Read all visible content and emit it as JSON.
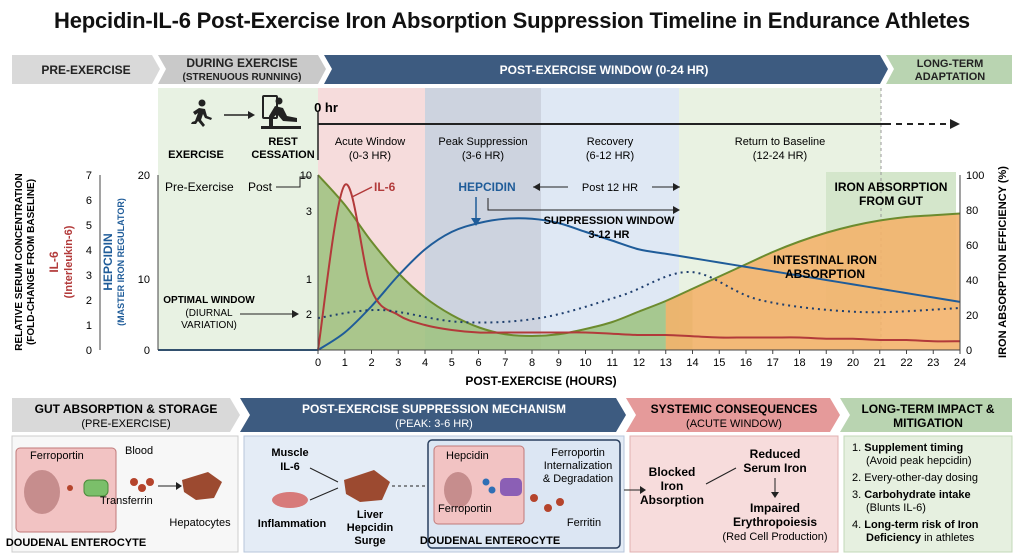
{
  "title": "Hepcidin-IL-6 Post-Exercise Iron Absorption Suppression Timeline in Endurance Athletes",
  "phases": {
    "pre": "PRE-EXERCISE",
    "during": "DURING EXERCISE",
    "during_sub": "(STRENUOUS RUNNING)",
    "post": "POST-EXERCISE WINDOW (0-24 HR)",
    "long": "LONG-TERM",
    "long2": "ADAPTATION"
  },
  "icons": {
    "exercise": "EXERCISE",
    "rest1": "REST",
    "rest2": "CESSATION",
    "zero": "0 hr"
  },
  "windows": [
    {
      "name": "Acute Window",
      "range": "(0-3 HR)"
    },
    {
      "name": "Peak Suppression",
      "range": "(3-6 HR)"
    },
    {
      "name": "Recovery",
      "range": "(6-12 HR)"
    },
    {
      "name": "Return to Baseline",
      "range": "(12-24 HR)"
    }
  ],
  "axes": {
    "y_rel": "RELATIVE SERUM CONCENTRATION",
    "y_rel2": "(FOLD-CHANGE FROM BASELINE)",
    "il6": "IL-6",
    "il6_2": "(Interleukin-6)",
    "hep": "HEPCIDIN",
    "hep2": "(MASTER IRON REGULATOR)",
    "right": "IRON ABSORPTION EFFICIENCY (%)",
    "x": "POST-EXERCISE (HOURS)",
    "il6_ticks": [
      "7",
      "6",
      "5",
      "4",
      "3",
      "2",
      "1",
      "0"
    ],
    "hep_ticks": [
      "20",
      "10",
      "0"
    ],
    "inner_ticks": [
      "10",
      "3",
      "1",
      "2"
    ],
    "right_ticks": [
      "100",
      "80",
      "60",
      "40",
      "20",
      "0"
    ],
    "x_ticks": [
      "0",
      "1",
      "2",
      "3",
      "4",
      "5",
      "6",
      "7",
      "8",
      "9",
      "10",
      "11",
      "12",
      "13",
      "14",
      "15",
      "16",
      "17",
      "18",
      "19",
      "20",
      "21",
      "22",
      "23",
      "24"
    ]
  },
  "labels": {
    "pre_exercise": "Pre-Exercise",
    "post": "Post",
    "il6": "IL-6",
    "hepcidin": "HEPCIDIN",
    "post12": "Post 12 HR",
    "supp1": "SUPPRESSION WINDOW",
    "supp2": "3-12 HR",
    "optimal1": "OPTIMAL WINDOW",
    "optimal2": "(DIURNAL",
    "optimal3": "VARIATION)",
    "iron_gut1": "IRON ABSORPTION",
    "iron_gut2": "FROM GUT",
    "intestinal1": "INTESTINAL IRON",
    "intestinal2": "ABSORPTION"
  },
  "chart_data": {
    "type": "line",
    "x": [
      0,
      1,
      2,
      3,
      4,
      5,
      6,
      7,
      8,
      9,
      10,
      11,
      12,
      13,
      14,
      15,
      16,
      17,
      18,
      19,
      20,
      21,
      22,
      23,
      24
    ],
    "xlabel": "POST-EXERCISE (HOURS)",
    "series": [
      {
        "name": "IL-6",
        "color": "#b23a3a",
        "values": [
          0,
          6.6,
          2.4,
          1.4,
          1.0,
          0.8,
          0.7,
          0.7,
          0.7,
          0.7,
          0.7,
          0.65,
          0.6,
          0.6,
          0.55,
          0.5,
          0.5,
          0.5,
          0.5,
          0.45,
          0.45,
          0.4,
          0.4,
          0.35,
          0.35
        ]
      },
      {
        "name": "HEPCIDIN",
        "color": "#1f5c99",
        "values": [
          0,
          2,
          5,
          8.5,
          11.5,
          13.5,
          14.5,
          15,
          15,
          14.5,
          13.5,
          12.5,
          11.5,
          11,
          10.5,
          10,
          9.5,
          9,
          8.5,
          8,
          7.5,
          7,
          6.5,
          6,
          5.5
        ]
      }
    ],
    "iron_absorption_percent": [
      100,
      83,
      62,
      44,
      30,
      20,
      13,
      9,
      8,
      9,
      12,
      16,
      22,
      28,
      35,
      42,
      49,
      56,
      62,
      67,
      71,
      74,
      76,
      77,
      78
    ],
    "ylim_hep": [
      0,
      20
    ],
    "ylim_il6": [
      0,
      7
    ],
    "ylim_right": [
      0,
      100
    ]
  },
  "bottom": {
    "gut_title": "GUT ABSORPTION & STORAGE",
    "gut_sub": "(PRE-EXERCISE)",
    "mech_title": "POST-EXERCISE SUPPRESSION MECHANISM",
    "mech_sub": "(PEAK: 3-6 HR)",
    "sys_title": "SYSTEMIC CONSEQUENCES",
    "sys_sub": "(ACUTE WINDOW)",
    "long_title": "LONG-TERM IMPACT &",
    "long_title2": "MITIGATION",
    "ferroportin": "Ferroportin",
    "blood": "Blood",
    "transferrin": "Transferrin",
    "hepatocytes": "Hepatocytes",
    "enterocyte": "DOUDENAL ENTEROCYTE",
    "muscle1": "Muscle",
    "muscle2": "IL-6",
    "inflammation": "Inflammation",
    "liver1": "Liver",
    "liver2": "Hepcidin",
    "liver3": "Surge",
    "hepcidin": "Hepcidin",
    "ferroportin2": "Ferroportin",
    "fi1": "Ferroportin",
    "fi2": "Internalization",
    "fi3": "& Degradation",
    "ferritin": "Ferritin",
    "enterocyte2": "DOUDENAL ENTEROCYTE",
    "blocked1": "Blocked",
    "blocked2": "Iron",
    "blocked3": "Absorption",
    "reduced1": "Reduced",
    "reduced2": "Serum Iron",
    "impaired1": "Impaired",
    "impaired2": "Erythropoiesis",
    "impaired3": "(Red Cell Production)",
    "items": [
      {
        "n": "1.",
        "b": "Supplement timing",
        "t": "(Avoid peak hepcidin)"
      },
      {
        "n": "2.",
        "b": "",
        "t": "Every-other-day dosing"
      },
      {
        "n": "3.",
        "b": "Carbohydrate intake",
        "t": "(Blunts IL-6)"
      },
      {
        "n": "4.",
        "b": "Long-term risk of Iron",
        "t2b": "Deficiency",
        "t": "in athletes"
      }
    ]
  }
}
